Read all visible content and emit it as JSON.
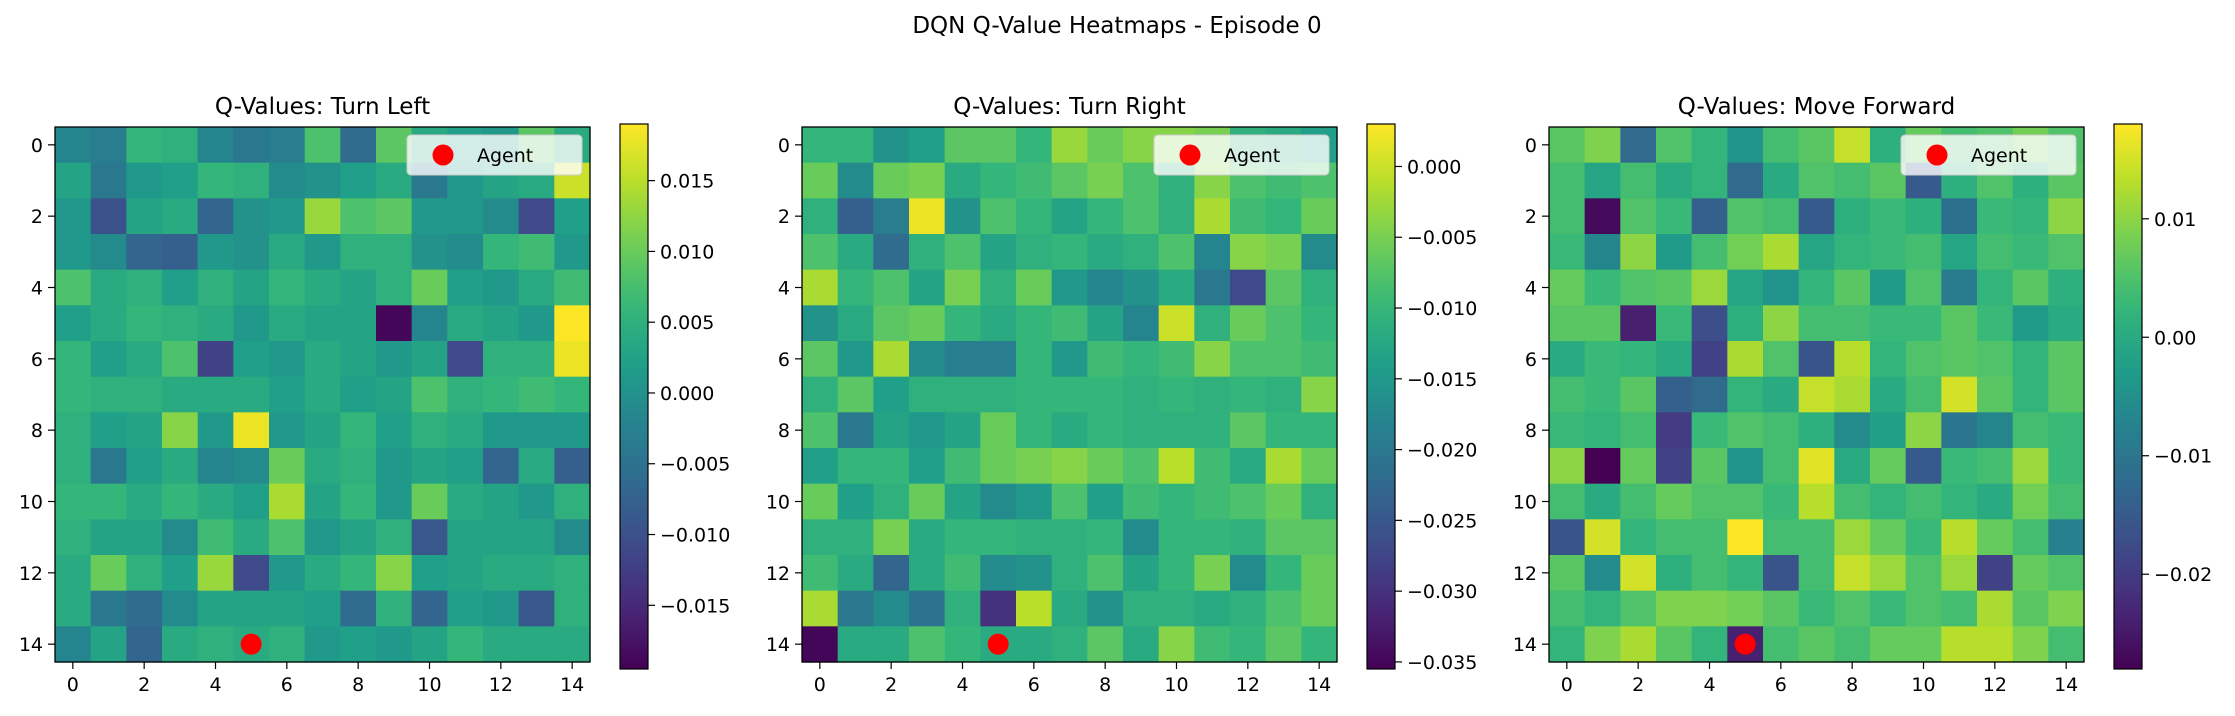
{
  "figure": {
    "title": "DQN Q-Value Heatmaps - Episode 0"
  },
  "colors": {
    "agent_marker": "#ff0000",
    "axis": "#000000"
  },
  "chart_data": [
    {
      "type": "heatmap",
      "title": "Q-Values: Turn Left",
      "xlabel": "",
      "ylabel": "",
      "xticks": [
        "0",
        "2",
        "4",
        "6",
        "8",
        "10",
        "12",
        "14"
      ],
      "yticks": [
        "0",
        "2",
        "4",
        "6",
        "8",
        "10",
        "12",
        "14"
      ],
      "grid_size": 15,
      "colormap": "viridis",
      "vmin": -0.0195,
      "vmax": 0.019,
      "colorbar_ticks": [
        "0.015",
        "0.010",
        "0.005",
        "0.000",
        "−0.005",
        "−0.010",
        "−0.015"
      ],
      "colorbar_values": [
        0.015,
        0.01,
        0.005,
        0.0,
        -0.005,
        -0.01,
        -0.015
      ],
      "agent": {
        "x": 5,
        "y": 14,
        "label": "Agent"
      },
      "legend": "top-right",
      "values": [
        [
          -0.002,
          -0.003,
          0.006,
          0.005,
          -0.002,
          -0.004,
          -0.003,
          0.008,
          -0.006,
          0.009,
          0.004,
          0.002,
          0.001,
          0.009,
          0.004
        ],
        [
          0.003,
          -0.004,
          0.001,
          0.002,
          0.006,
          0.005,
          -0.001,
          0.0,
          0.002,
          0.004,
          -0.004,
          0.001,
          0.003,
          0.004,
          0.016
        ],
        [
          0.001,
          -0.01,
          0.003,
          0.004,
          -0.007,
          0.0,
          0.001,
          0.013,
          0.008,
          0.009,
          0.001,
          0.001,
          -0.001,
          -0.011,
          0.002
        ],
        [
          0.001,
          -0.001,
          -0.007,
          -0.008,
          0.001,
          0.0,
          0.004,
          0.001,
          0.005,
          0.005,
          0.0,
          -0.001,
          0.006,
          0.007,
          0.001
        ],
        [
          0.008,
          0.004,
          0.005,
          0.002,
          0.005,
          0.003,
          0.006,
          0.004,
          0.003,
          0.005,
          0.01,
          0.002,
          0.001,
          0.004,
          0.007
        ],
        [
          0.002,
          0.004,
          0.006,
          0.005,
          0.004,
          0.001,
          0.004,
          0.003,
          0.003,
          -0.019,
          -0.002,
          0.004,
          0.003,
          0.001,
          0.019
        ],
        [
          0.006,
          0.002,
          0.004,
          0.008,
          -0.012,
          0.002,
          0.001,
          0.004,
          0.003,
          0.001,
          0.003,
          -0.011,
          0.005,
          0.005,
          0.018
        ],
        [
          0.006,
          0.005,
          0.005,
          0.004,
          0.004,
          0.004,
          0.002,
          0.004,
          0.002,
          0.003,
          0.008,
          0.005,
          0.006,
          0.007,
          0.006
        ],
        [
          0.005,
          0.002,
          0.003,
          0.012,
          0.001,
          0.018,
          0.001,
          0.003,
          0.006,
          0.002,
          0.005,
          0.004,
          0.001,
          0.001,
          0.001
        ],
        [
          0.005,
          -0.004,
          0.002,
          0.004,
          -0.002,
          -0.001,
          0.01,
          0.004,
          0.005,
          0.001,
          0.003,
          0.002,
          -0.007,
          0.004,
          -0.008
        ],
        [
          0.006,
          0.006,
          0.004,
          0.006,
          0.004,
          0.002,
          0.014,
          0.003,
          0.006,
          0.001,
          0.01,
          0.004,
          0.003,
          0.001,
          0.005
        ],
        [
          0.005,
          0.003,
          0.003,
          -0.001,
          0.007,
          0.004,
          0.008,
          0.001,
          0.003,
          0.005,
          -0.009,
          0.003,
          0.003,
          0.003,
          -0.001
        ],
        [
          0.004,
          0.01,
          0.005,
          0.002,
          0.013,
          -0.011,
          0.001,
          0.004,
          0.006,
          0.012,
          0.002,
          0.003,
          0.004,
          0.004,
          0.005
        ],
        [
          0.004,
          -0.004,
          -0.006,
          -0.001,
          0.003,
          0.003,
          0.003,
          0.002,
          -0.006,
          0.005,
          -0.007,
          0.002,
          0.001,
          -0.009,
          0.005
        ],
        [
          -0.002,
          0.003,
          -0.007,
          0.004,
          0.005,
          0.004,
          0.005,
          0.001,
          0.002,
          0.001,
          0.003,
          0.006,
          0.004,
          0.004,
          0.004
        ]
      ]
    },
    {
      "type": "heatmap",
      "title": "Q-Values: Turn Right",
      "xlabel": "",
      "ylabel": "",
      "xticks": [
        "0",
        "2",
        "4",
        "6",
        "8",
        "10",
        "12",
        "14"
      ],
      "yticks": [
        "0",
        "2",
        "4",
        "6",
        "8",
        "10",
        "12",
        "14"
      ],
      "grid_size": 15,
      "colormap": "viridis",
      "vmin": -0.0355,
      "vmax": 0.003,
      "colorbar_ticks": [
        "0.000",
        "−0.005",
        "−0.010",
        "−0.015",
        "−0.020",
        "−0.025",
        "−0.030",
        "−0.035"
      ],
      "colorbar_values": [
        0.0,
        -0.005,
        -0.01,
        -0.015,
        -0.02,
        -0.025,
        -0.03,
        -0.035
      ],
      "agent": {
        "x": 5,
        "y": 14,
        "label": "Agent"
      },
      "legend": "top-right",
      "values": [
        [
          -0.01,
          -0.01,
          -0.016,
          -0.014,
          -0.007,
          -0.007,
          -0.01,
          -0.003,
          -0.006,
          -0.004,
          -0.004,
          -0.005,
          -0.011,
          -0.012,
          -0.014
        ],
        [
          -0.006,
          -0.017,
          -0.006,
          -0.005,
          -0.012,
          -0.01,
          -0.009,
          -0.007,
          -0.005,
          -0.008,
          -0.011,
          -0.004,
          -0.008,
          -0.009,
          -0.008
        ],
        [
          -0.011,
          -0.024,
          -0.019,
          0.002,
          -0.016,
          -0.008,
          -0.01,
          -0.013,
          -0.01,
          -0.008,
          -0.011,
          -0.002,
          -0.009,
          -0.01,
          -0.006
        ],
        [
          -0.008,
          -0.012,
          -0.022,
          -0.011,
          -0.008,
          -0.013,
          -0.011,
          -0.01,
          -0.012,
          -0.011,
          -0.008,
          -0.018,
          -0.004,
          -0.005,
          -0.017
        ],
        [
          -0.002,
          -0.01,
          -0.008,
          -0.013,
          -0.005,
          -0.011,
          -0.006,
          -0.015,
          -0.018,
          -0.016,
          -0.012,
          -0.02,
          -0.027,
          -0.007,
          -0.011
        ],
        [
          -0.016,
          -0.012,
          -0.007,
          -0.006,
          -0.01,
          -0.012,
          -0.01,
          -0.009,
          -0.013,
          -0.018,
          0.0,
          -0.011,
          -0.006,
          -0.008,
          -0.01
        ],
        [
          -0.007,
          -0.015,
          -0.002,
          -0.017,
          -0.019,
          -0.019,
          -0.01,
          -0.015,
          -0.009,
          -0.01,
          -0.009,
          -0.004,
          -0.008,
          -0.008,
          -0.009
        ],
        [
          -0.011,
          -0.007,
          -0.014,
          -0.011,
          -0.011,
          -0.011,
          -0.01,
          -0.01,
          -0.01,
          -0.011,
          -0.01,
          -0.011,
          -0.01,
          -0.011,
          -0.004
        ],
        [
          -0.008,
          -0.02,
          -0.013,
          -0.015,
          -0.013,
          -0.006,
          -0.01,
          -0.012,
          -0.01,
          -0.011,
          -0.011,
          -0.011,
          -0.007,
          -0.01,
          -0.01
        ],
        [
          -0.014,
          -0.01,
          -0.01,
          -0.014,
          -0.009,
          -0.006,
          -0.005,
          -0.004,
          -0.006,
          -0.008,
          -0.001,
          -0.009,
          -0.012,
          -0.002,
          -0.006
        ],
        [
          -0.006,
          -0.014,
          -0.011,
          -0.006,
          -0.013,
          -0.017,
          -0.015,
          -0.008,
          -0.014,
          -0.009,
          -0.01,
          -0.009,
          -0.008,
          -0.006,
          -0.011
        ],
        [
          -0.011,
          -0.011,
          -0.005,
          -0.012,
          -0.01,
          -0.01,
          -0.011,
          -0.011,
          -0.01,
          -0.017,
          -0.01,
          -0.01,
          -0.011,
          -0.007,
          -0.007
        ],
        [
          -0.009,
          -0.012,
          -0.023,
          -0.012,
          -0.009,
          -0.017,
          -0.016,
          -0.011,
          -0.008,
          -0.013,
          -0.01,
          -0.005,
          -0.017,
          -0.01,
          -0.006
        ],
        [
          -0.002,
          -0.02,
          -0.017,
          -0.021,
          -0.011,
          -0.03,
          -0.001,
          -0.012,
          -0.016,
          -0.011,
          -0.011,
          -0.012,
          -0.011,
          -0.008,
          -0.006
        ],
        [
          -0.035,
          -0.012,
          -0.012,
          -0.008,
          -0.01,
          -0.012,
          -0.012,
          -0.011,
          -0.007,
          -0.012,
          -0.004,
          -0.009,
          -0.01,
          -0.007,
          -0.01
        ]
      ]
    },
    {
      "type": "heatmap",
      "title": "Q-Values: Move Forward",
      "xlabel": "",
      "ylabel": "",
      "xticks": [
        "0",
        "2",
        "4",
        "6",
        "8",
        "10",
        "12",
        "14"
      ],
      "yticks": [
        "0",
        "2",
        "4",
        "6",
        "8",
        "10",
        "12",
        "14"
      ],
      "grid_size": 15,
      "colormap": "viridis",
      "vmin": -0.028,
      "vmax": 0.018,
      "colorbar_ticks": [
        "0.01",
        "0.00",
        "−0.01",
        "−0.02"
      ],
      "colorbar_values": [
        0.01,
        0.0,
        -0.01,
        -0.02
      ],
      "agent": {
        "x": 5,
        "y": 14,
        "label": "Agent"
      },
      "legend": "top-right",
      "values": [
        [
          0.006,
          0.009,
          -0.012,
          0.005,
          0.002,
          -0.004,
          0.004,
          0.006,
          0.014,
          0.001,
          0.007,
          0.004,
          0.005,
          0.008,
          0.005
        ],
        [
          0.004,
          -0.001,
          0.004,
          0.0,
          0.002,
          -0.012,
          0.0,
          0.005,
          0.004,
          0.006,
          -0.015,
          0.001,
          0.005,
          0.001,
          0.006
        ],
        [
          0.004,
          -0.027,
          0.005,
          0.003,
          -0.014,
          0.005,
          0.004,
          -0.015,
          0.001,
          0.003,
          0.001,
          -0.011,
          0.003,
          0.002,
          0.01
        ],
        [
          0.003,
          -0.007,
          0.01,
          -0.003,
          0.004,
          0.008,
          0.012,
          -0.001,
          0.002,
          0.003,
          0.004,
          -0.001,
          0.004,
          0.003,
          0.005
        ],
        [
          0.007,
          0.003,
          0.005,
          0.006,
          0.011,
          -0.001,
          -0.004,
          0.002,
          0.006,
          -0.003,
          0.005,
          -0.009,
          0.002,
          0.006,
          0.001
        ],
        [
          0.006,
          0.006,
          -0.024,
          0.003,
          -0.017,
          0.001,
          0.01,
          0.004,
          0.004,
          0.003,
          0.003,
          0.006,
          0.003,
          -0.003,
          0.0
        ],
        [
          0.0,
          0.003,
          0.002,
          0.0,
          -0.019,
          0.012,
          0.005,
          -0.016,
          0.013,
          0.002,
          0.005,
          0.006,
          0.005,
          0.002,
          0.006
        ],
        [
          0.004,
          0.003,
          0.006,
          -0.014,
          -0.012,
          0.002,
          0.0,
          0.014,
          0.012,
          0.0,
          0.004,
          0.015,
          0.006,
          0.002,
          0.006
        ],
        [
          0.003,
          0.002,
          0.004,
          -0.02,
          0.003,
          0.005,
          0.004,
          0.001,
          -0.006,
          -0.002,
          0.01,
          -0.01,
          -0.007,
          0.004,
          0.003
        ],
        [
          0.01,
          -0.028,
          0.007,
          -0.019,
          0.006,
          -0.004,
          0.004,
          0.016,
          0.0,
          0.007,
          -0.015,
          0.003,
          0.004,
          0.011,
          0.003
        ],
        [
          0.004,
          0.0,
          0.004,
          0.007,
          0.005,
          0.005,
          0.003,
          0.013,
          0.004,
          0.002,
          0.004,
          0.002,
          0.0,
          0.008,
          0.004
        ],
        [
          -0.016,
          0.015,
          0.002,
          0.004,
          0.004,
          0.018,
          0.004,
          0.004,
          0.011,
          0.007,
          0.003,
          0.013,
          0.007,
          0.004,
          -0.008
        ],
        [
          0.006,
          -0.006,
          0.015,
          0.001,
          0.004,
          0.002,
          -0.016,
          0.004,
          0.014,
          0.011,
          0.005,
          0.011,
          -0.019,
          0.007,
          0.005
        ],
        [
          0.004,
          0.002,
          0.005,
          0.009,
          0.009,
          0.008,
          0.006,
          0.003,
          0.005,
          0.003,
          0.005,
          0.004,
          0.012,
          0.006,
          0.009
        ],
        [
          0.002,
          0.009,
          0.012,
          0.006,
          0.002,
          -0.024,
          0.004,
          0.006,
          0.004,
          0.007,
          0.007,
          0.013,
          0.013,
          0.009,
          0.004
        ]
      ]
    }
  ]
}
